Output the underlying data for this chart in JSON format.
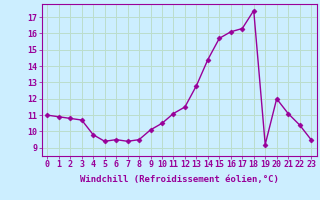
{
  "x": [
    0,
    1,
    2,
    3,
    4,
    5,
    6,
    7,
    8,
    9,
    10,
    11,
    12,
    13,
    14,
    15,
    16,
    17,
    18,
    19,
    20,
    21,
    22,
    23
  ],
  "y": [
    11.0,
    10.9,
    10.8,
    10.7,
    9.8,
    9.4,
    9.5,
    9.4,
    9.5,
    10.1,
    10.5,
    11.1,
    11.5,
    12.8,
    14.4,
    15.7,
    16.1,
    16.3,
    17.4,
    9.2,
    12.0,
    11.1,
    10.4,
    9.5
  ],
  "line_color": "#990099",
  "marker": "D",
  "markersize": 2.5,
  "linewidth": 1.0,
  "xlabel": "Windchill (Refroidissement éolien,°C)",
  "ylabel_ticks": [
    9,
    10,
    11,
    12,
    13,
    14,
    15,
    16,
    17
  ],
  "ylim": [
    8.5,
    17.8
  ],
  "xlim": [
    -0.5,
    23.5
  ],
  "bg_color": "#cceeff",
  "grid_color": "#bbddcc",
  "tick_color": "#990099",
  "label_color": "#990099",
  "xlabel_fontsize": 6.5,
  "tick_fontsize": 6.0
}
